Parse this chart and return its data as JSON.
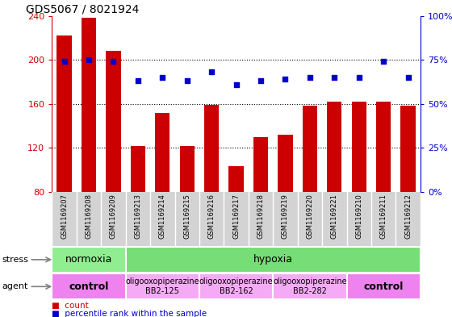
{
  "title": "GDS5067 / 8021924",
  "samples": [
    "GSM1169207",
    "GSM1169208",
    "GSM1169209",
    "GSM1169213",
    "GSM1169214",
    "GSM1169215",
    "GSM1169216",
    "GSM1169217",
    "GSM1169218",
    "GSM1169219",
    "GSM1169220",
    "GSM1169221",
    "GSM1169210",
    "GSM1169211",
    "GSM1169212"
  ],
  "counts": [
    222,
    238,
    208,
    122,
    152,
    122,
    159,
    103,
    130,
    132,
    158,
    162,
    162,
    162,
    158
  ],
  "percentiles": [
    74,
    75,
    74,
    63,
    65,
    63,
    68,
    61,
    63,
    64,
    65,
    65,
    65,
    74,
    65
  ],
  "bar_color": "#cc0000",
  "dot_color": "#0000cc",
  "ylim_left": [
    80,
    240
  ],
  "ylim_right": [
    0,
    100
  ],
  "yticks_left": [
    80,
    120,
    160,
    200,
    240
  ],
  "yticks_right": [
    0,
    25,
    50,
    75,
    100
  ],
  "stress_groups": [
    {
      "label": "normoxia",
      "start": 0,
      "end": 3,
      "color": "#90ee90"
    },
    {
      "label": "hypoxia",
      "start": 3,
      "end": 15,
      "color": "#77dd77"
    }
  ],
  "agent_groups": [
    {
      "label": "control",
      "start": 0,
      "end": 3,
      "color": "#ee82ee",
      "bold": true
    },
    {
      "label": "oligooxopiperazine\nBB2-125",
      "start": 3,
      "end": 6,
      "color": "#f5aaf5",
      "bold": false
    },
    {
      "label": "oligooxopiperazine\nBB2-162",
      "start": 6,
      "end": 9,
      "color": "#f5aaf5",
      "bold": false
    },
    {
      "label": "oligooxopiperazine\nBB2-282",
      "start": 9,
      "end": 12,
      "color": "#f5aaf5",
      "bold": false
    },
    {
      "label": "control",
      "start": 12,
      "end": 15,
      "color": "#ee82ee",
      "bold": true
    }
  ],
  "xtick_bg": "#d3d3d3",
  "tick_label_color_left": "#cc0000",
  "tick_label_color_right": "#0000cc"
}
